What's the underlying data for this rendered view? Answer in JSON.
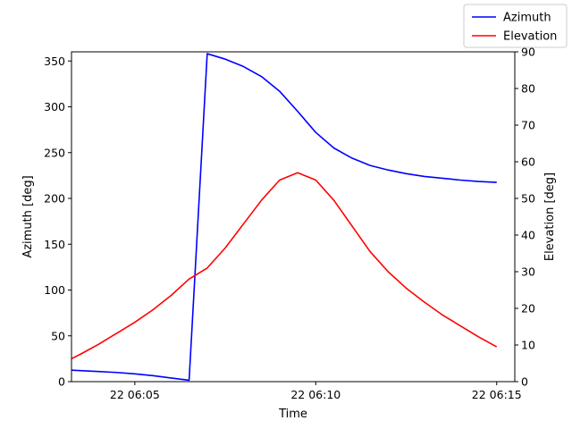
{
  "chart_data": {
    "type": "line",
    "title": "",
    "xlabel": "Time",
    "ylabel_left": "Azimuth [deg]",
    "ylabel_right": "Elevation [deg]",
    "xlim_minutes": [
      3.25,
      15.5
    ],
    "x_ticks": [
      {
        "value": 5,
        "label": "22 06:05"
      },
      {
        "value": 10,
        "label": "22 06:10"
      },
      {
        "value": 15,
        "label": "22 06:15"
      }
    ],
    "ylim_left": [
      0,
      360
    ],
    "y_ticks_left": [
      0,
      50,
      100,
      150,
      200,
      250,
      300,
      350
    ],
    "ylim_right": [
      0,
      90
    ],
    "y_ticks_right": [
      0,
      10,
      20,
      30,
      40,
      50,
      60,
      70,
      80,
      90
    ],
    "grid": false,
    "legend_position": "top-right-outside",
    "series": [
      {
        "name": "Azimuth",
        "axis": "left",
        "color": "#0000ff",
        "x": [
          3.0,
          3.5,
          4.0,
          4.5,
          5.0,
          5.5,
          6.0,
          6.5,
          7.0,
          7.5,
          8.0,
          8.5,
          9.0,
          9.5,
          10.0,
          10.5,
          11.0,
          11.5,
          12.0,
          12.5,
          13.0,
          13.5,
          14.0,
          14.5,
          15.0
        ],
        "values": [
          13,
          12,
          11,
          10,
          8.5,
          6.5,
          4,
          1.5,
          358,
          352,
          344,
          333,
          317,
          295,
          272,
          255,
          244,
          236,
          231,
          227,
          224,
          222,
          220,
          218.5,
          217.5
        ]
      },
      {
        "name": "Elevation",
        "axis": "right",
        "color": "#ff0000",
        "x": [
          3.0,
          3.5,
          4.0,
          4.5,
          5.0,
          5.5,
          6.0,
          6.5,
          7.0,
          7.5,
          8.0,
          8.5,
          9.0,
          9.5,
          10.0,
          10.5,
          11.0,
          11.5,
          12.0,
          12.5,
          13.0,
          13.5,
          14.0,
          14.5,
          15.0
        ],
        "values": [
          5.0,
          7.5,
          10.2,
          13.2,
          16.2,
          19.6,
          23.5,
          28.0,
          31.0,
          36.5,
          43.0,
          49.5,
          55.0,
          57.0,
          55.0,
          49.5,
          42.5,
          35.5,
          30.0,
          25.5,
          21.7,
          18.2,
          15.2,
          12.2,
          9.5
        ]
      }
    ]
  }
}
